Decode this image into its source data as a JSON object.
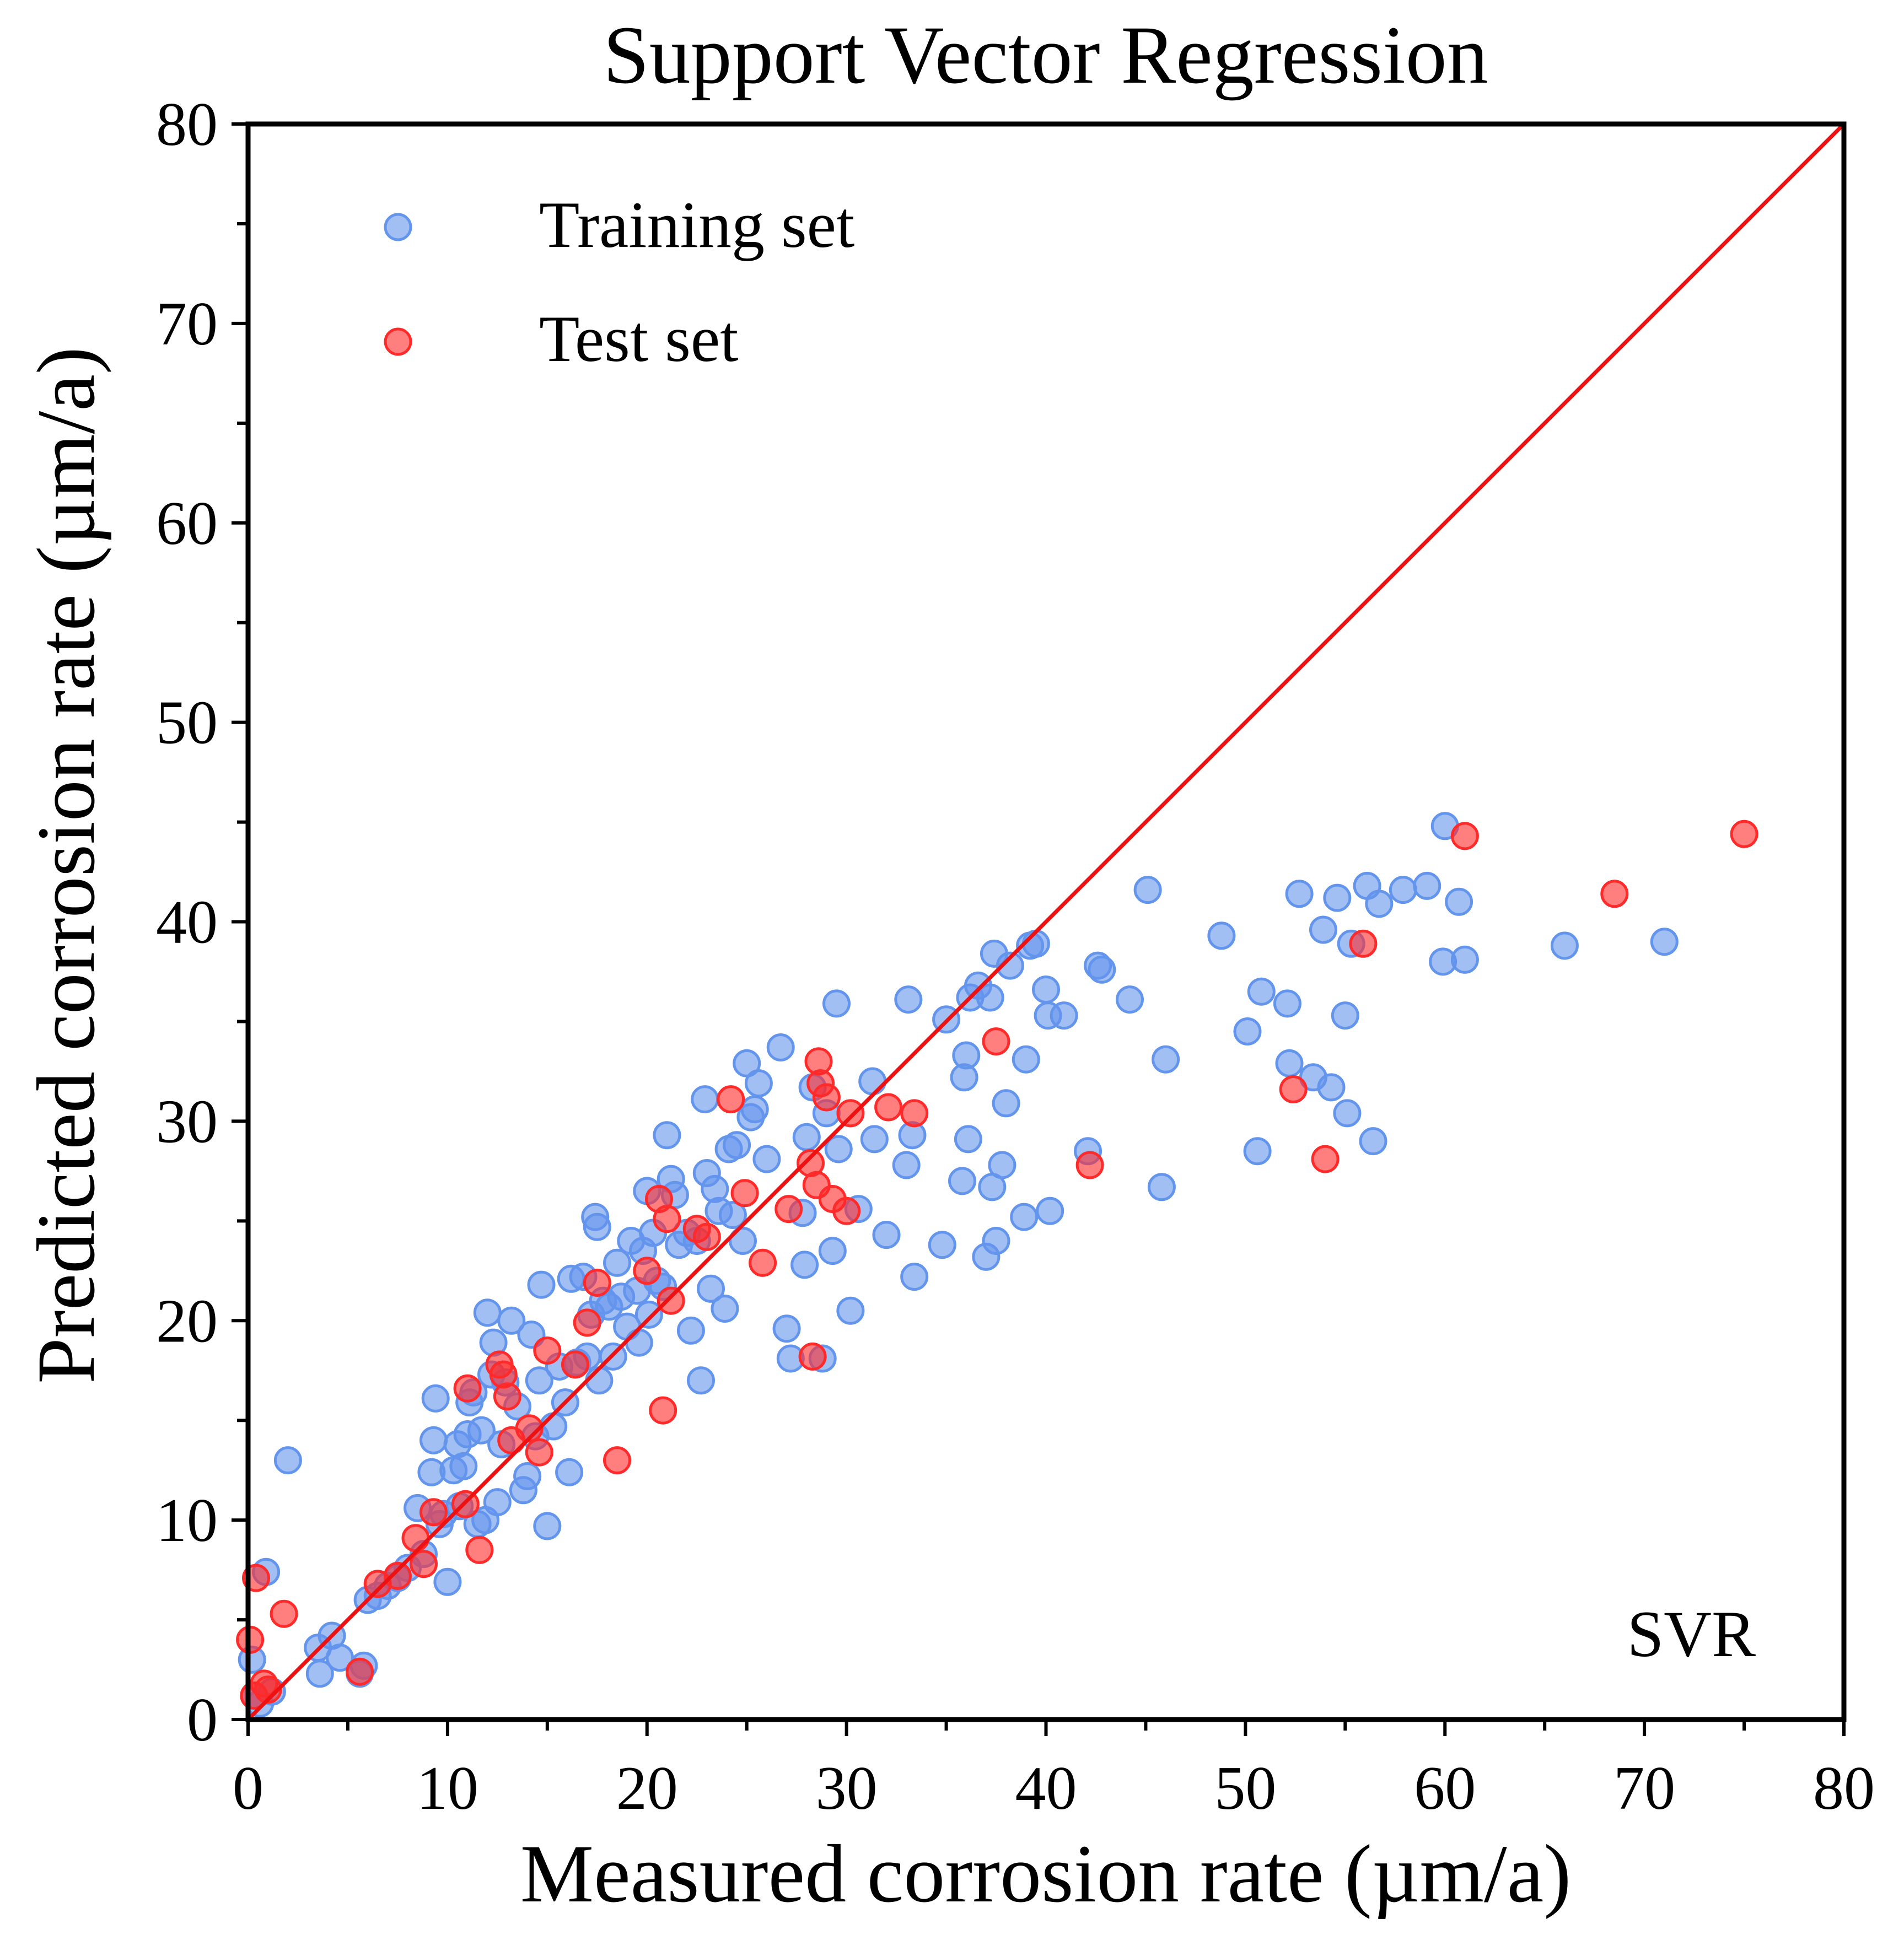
{
  "chart_data": {
    "type": "scatter",
    "title": "Support Vector Regression",
    "xlabel": "Measured corrosion rate (µm/a)",
    "ylabel": "Predicted corrosion rate (µm/a)",
    "xlim": [
      0,
      80
    ],
    "ylim": [
      0,
      80
    ],
    "xticks": [
      0,
      10,
      20,
      30,
      40,
      50,
      60,
      70,
      80
    ],
    "yticks": [
      0,
      10,
      20,
      30,
      40,
      50,
      60,
      70,
      80
    ],
    "minor_ticks_step": 5,
    "grid": false,
    "legend_position": "top-left",
    "annotation": "SVR",
    "reference_line": {
      "x": [
        0,
        80
      ],
      "y": [
        0,
        80
      ],
      "color": "#ee1111"
    },
    "series": [
      {
        "name": "Training set",
        "color": "#6495ed",
        "points": [
          [
            0.2,
            3.0
          ],
          [
            0.3,
            1.2
          ],
          [
            0.6,
            0.8
          ],
          [
            0.9,
            7.4
          ],
          [
            1.2,
            1.4
          ],
          [
            2.0,
            13.0
          ],
          [
            3.5,
            3.6
          ],
          [
            3.6,
            2.3
          ],
          [
            4.2,
            4.2
          ],
          [
            4.6,
            3.1
          ],
          [
            5.6,
            2.3
          ],
          [
            5.8,
            2.7
          ],
          [
            6.0,
            6.0
          ],
          [
            6.5,
            6.2
          ],
          [
            7.0,
            6.7
          ],
          [
            7.5,
            7.1
          ],
          [
            8.0,
            7.6
          ],
          [
            8.5,
            10.6
          ],
          [
            8.8,
            8.3
          ],
          [
            9.2,
            12.4
          ],
          [
            9.3,
            14.0
          ],
          [
            9.4,
            16.1
          ],
          [
            9.6,
            9.8
          ],
          [
            9.8,
            10.3
          ],
          [
            10.0,
            6.9
          ],
          [
            10.3,
            12.5
          ],
          [
            10.5,
            13.8
          ],
          [
            10.6,
            10.7
          ],
          [
            10.8,
            12.7
          ],
          [
            11.0,
            14.3
          ],
          [
            11.1,
            15.9
          ],
          [
            11.3,
            16.4
          ],
          [
            11.5,
            9.8
          ],
          [
            11.7,
            14.5
          ],
          [
            11.9,
            10.0
          ],
          [
            12.0,
            20.4
          ],
          [
            12.2,
            17.3
          ],
          [
            12.3,
            18.9
          ],
          [
            12.5,
            10.9
          ],
          [
            12.7,
            13.8
          ],
          [
            12.9,
            16.9
          ],
          [
            13.2,
            20.0
          ],
          [
            13.5,
            15.7
          ],
          [
            13.8,
            11.5
          ],
          [
            14.0,
            12.2
          ],
          [
            14.2,
            19.3
          ],
          [
            14.4,
            14.2
          ],
          [
            14.6,
            17.0
          ],
          [
            14.7,
            21.8
          ],
          [
            15.0,
            9.7
          ],
          [
            15.3,
            14.7
          ],
          [
            15.6,
            17.7
          ],
          [
            15.9,
            15.9
          ],
          [
            16.1,
            12.4
          ],
          [
            16.2,
            22.1
          ],
          [
            16.5,
            17.9
          ],
          [
            16.8,
            22.2
          ],
          [
            17.0,
            18.2
          ],
          [
            17.2,
            20.3
          ],
          [
            17.4,
            25.2
          ],
          [
            17.5,
            24.7
          ],
          [
            17.6,
            17.0
          ],
          [
            17.8,
            21.0
          ],
          [
            18.1,
            20.7
          ],
          [
            18.3,
            18.2
          ],
          [
            18.5,
            22.9
          ],
          [
            18.7,
            21.2
          ],
          [
            19.0,
            19.7
          ],
          [
            19.2,
            24.0
          ],
          [
            19.5,
            21.5
          ],
          [
            19.6,
            18.9
          ],
          [
            19.8,
            23.5
          ],
          [
            20.0,
            26.5
          ],
          [
            20.1,
            20.3
          ],
          [
            20.3,
            24.4
          ],
          [
            20.5,
            22.0
          ],
          [
            20.8,
            21.7
          ],
          [
            21.0,
            29.3
          ],
          [
            21.2,
            27.1
          ],
          [
            21.4,
            26.3
          ],
          [
            21.6,
            23.8
          ],
          [
            22.0,
            24.4
          ],
          [
            22.2,
            19.5
          ],
          [
            22.5,
            24.0
          ],
          [
            22.7,
            17.0
          ],
          [
            22.9,
            31.1
          ],
          [
            23.0,
            27.4
          ],
          [
            23.2,
            21.6
          ],
          [
            23.4,
            26.6
          ],
          [
            23.6,
            25.5
          ],
          [
            23.9,
            20.6
          ],
          [
            24.1,
            28.6
          ],
          [
            24.3,
            25.3
          ],
          [
            24.5,
            28.8
          ],
          [
            24.8,
            24.0
          ],
          [
            25.0,
            32.9
          ],
          [
            25.2,
            30.2
          ],
          [
            25.4,
            30.6
          ],
          [
            25.6,
            31.9
          ],
          [
            26.0,
            28.1
          ],
          [
            26.7,
            33.7
          ],
          [
            27.0,
            19.6
          ],
          [
            27.2,
            18.1
          ],
          [
            27.8,
            25.4
          ],
          [
            27.9,
            22.8
          ],
          [
            28.0,
            29.2
          ],
          [
            28.3,
            31.7
          ],
          [
            28.8,
            18.1
          ],
          [
            29.0,
            30.4
          ],
          [
            29.3,
            23.5
          ],
          [
            29.5,
            35.9
          ],
          [
            29.6,
            28.6
          ],
          [
            30.2,
            20.5
          ],
          [
            30.6,
            25.6
          ],
          [
            31.3,
            32.0
          ],
          [
            31.4,
            29.1
          ],
          [
            32.0,
            24.3
          ],
          [
            33.0,
            27.8
          ],
          [
            33.1,
            36.1
          ],
          [
            33.3,
            29.3
          ],
          [
            33.4,
            22.2
          ],
          [
            34.8,
            23.8
          ],
          [
            35.0,
            35.1
          ],
          [
            35.8,
            27.0
          ],
          [
            35.9,
            32.2
          ],
          [
            36.0,
            33.3
          ],
          [
            36.1,
            29.1
          ],
          [
            36.2,
            36.2
          ],
          [
            36.6,
            36.8
          ],
          [
            37.0,
            23.2
          ],
          [
            37.2,
            36.2
          ],
          [
            37.3,
            26.7
          ],
          [
            37.4,
            38.4
          ],
          [
            37.5,
            24.0
          ],
          [
            37.8,
            27.8
          ],
          [
            38.0,
            30.9
          ],
          [
            38.2,
            37.8
          ],
          [
            38.9,
            25.2
          ],
          [
            39.0,
            33.1
          ],
          [
            39.2,
            38.8
          ],
          [
            39.5,
            38.9
          ],
          [
            40.0,
            36.6
          ],
          [
            40.1,
            35.3
          ],
          [
            40.2,
            25.5
          ],
          [
            40.9,
            35.3
          ],
          [
            42.1,
            28.5
          ],
          [
            42.6,
            37.8
          ],
          [
            42.8,
            37.6
          ],
          [
            44.2,
            36.1
          ],
          [
            45.1,
            41.6
          ],
          [
            45.8,
            26.7
          ],
          [
            46.0,
            33.1
          ],
          [
            48.8,
            39.3
          ],
          [
            50.1,
            34.5
          ],
          [
            50.6,
            28.5
          ],
          [
            50.8,
            36.5
          ],
          [
            52.1,
            35.9
          ],
          [
            52.2,
            32.9
          ],
          [
            52.7,
            41.4
          ],
          [
            53.4,
            32.2
          ],
          [
            53.9,
            39.6
          ],
          [
            54.3,
            31.7
          ],
          [
            54.6,
            41.2
          ],
          [
            55.0,
            35.3
          ],
          [
            55.1,
            30.4
          ],
          [
            55.3,
            38.9
          ],
          [
            56.1,
            41.8
          ],
          [
            56.4,
            29.0
          ],
          [
            56.7,
            40.9
          ],
          [
            57.9,
            41.6
          ],
          [
            59.1,
            41.8
          ],
          [
            59.9,
            38.0
          ],
          [
            60.0,
            44.8
          ],
          [
            60.7,
            41.0
          ],
          [
            61.0,
            38.1
          ],
          [
            66.0,
            38.8
          ],
          [
            71.0,
            39.0
          ]
        ]
      },
      {
        "name": "Test set",
        "color": "#ff2a2a",
        "points": [
          [
            0.1,
            4.0
          ],
          [
            0.3,
            1.2
          ],
          [
            0.4,
            7.1
          ],
          [
            0.8,
            1.8
          ],
          [
            1.0,
            1.5
          ],
          [
            1.8,
            5.3
          ],
          [
            5.6,
            2.4
          ],
          [
            6.5,
            6.8
          ],
          [
            7.5,
            7.2
          ],
          [
            8.4,
            9.1
          ],
          [
            8.8,
            7.8
          ],
          [
            9.3,
            10.4
          ],
          [
            10.9,
            10.8
          ],
          [
            11.0,
            16.6
          ],
          [
            11.6,
            8.5
          ],
          [
            12.6,
            17.8
          ],
          [
            12.8,
            17.3
          ],
          [
            13.0,
            16.2
          ],
          [
            13.2,
            14.0
          ],
          [
            14.1,
            14.6
          ],
          [
            14.6,
            13.4
          ],
          [
            15.0,
            18.5
          ],
          [
            16.4,
            17.8
          ],
          [
            17.0,
            19.9
          ],
          [
            17.5,
            21.9
          ],
          [
            18.5,
            13.0
          ],
          [
            20.0,
            22.5
          ],
          [
            20.6,
            26.1
          ],
          [
            20.8,
            15.5
          ],
          [
            21.0,
            25.1
          ],
          [
            21.2,
            21.0
          ],
          [
            22.5,
            24.6
          ],
          [
            23.0,
            24.2
          ],
          [
            24.2,
            31.1
          ],
          [
            24.9,
            26.4
          ],
          [
            25.8,
            22.9
          ],
          [
            27.1,
            25.6
          ],
          [
            28.2,
            27.9
          ],
          [
            28.3,
            18.2
          ],
          [
            28.5,
            26.8
          ],
          [
            28.6,
            33.0
          ],
          [
            28.7,
            31.9
          ],
          [
            29.0,
            31.2
          ],
          [
            29.3,
            26.1
          ],
          [
            30.0,
            25.5
          ],
          [
            30.2,
            30.4
          ],
          [
            32.1,
            30.7
          ],
          [
            33.4,
            30.4
          ],
          [
            37.5,
            34.0
          ],
          [
            42.2,
            27.8
          ],
          [
            52.4,
            31.6
          ],
          [
            54.0,
            28.1
          ],
          [
            55.9,
            38.9
          ],
          [
            61.0,
            44.3
          ],
          [
            68.5,
            41.4
          ],
          [
            75.0,
            44.4
          ]
        ]
      }
    ]
  }
}
